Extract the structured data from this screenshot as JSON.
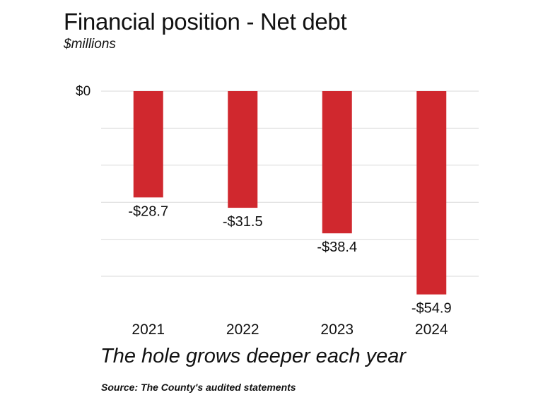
{
  "header": {
    "title": "Financial position - Net debt",
    "subtitle": "$millions"
  },
  "footer": {
    "tagline": "The hole grows deeper each year",
    "source": "Source: The County's audited statements"
  },
  "colors": {
    "bar": "#d0282e",
    "grid": "#d9d9d9",
    "text": "#111111"
  },
  "chart_data": {
    "type": "bar",
    "title": "Financial position - Net debt",
    "ylabel": "$millions",
    "xlabel": "",
    "categories": [
      "2021",
      "2022",
      "2023",
      "2024"
    ],
    "values": [
      -28.7,
      -31.5,
      -38.4,
      -54.9
    ],
    "value_labels": [
      "-$28.7",
      "-$31.5",
      "-$38.4",
      "-$54.9"
    ],
    "ylim": [
      -60,
      0
    ],
    "y_gridlines": [
      0,
      -10,
      -20,
      -30,
      -40,
      -50
    ],
    "y_tick_labels": [
      {
        "value": 0,
        "label": "$0"
      }
    ],
    "grid": true,
    "legend": "none"
  }
}
